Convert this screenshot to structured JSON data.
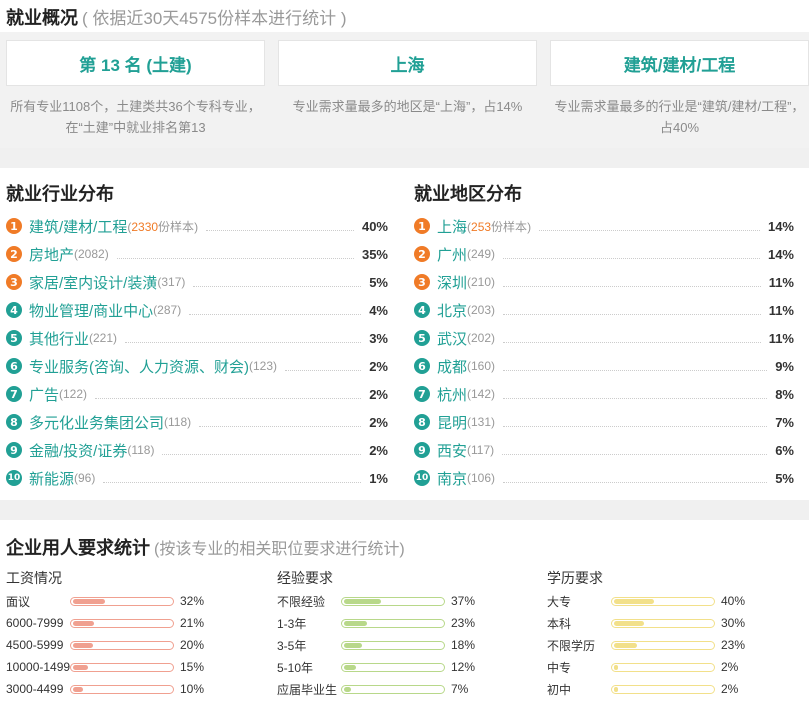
{
  "overview": {
    "title": "就业概况",
    "subtitle": "( 依据近30天4575份样本进行统计 )",
    "cards": [
      {
        "value": "第 13 名 (土建)",
        "desc": "所有专业1108个，土建类共36个专科专业，在“土建”中就业排名第13"
      },
      {
        "value": "上海",
        "desc": "专业需求量最多的地区是“上海”，占14%"
      },
      {
        "value": "建筑/建材/工程",
        "desc": "专业需求量最多的行业是“建筑/建材/工程”，占40%"
      }
    ]
  },
  "industry": {
    "title": "就业行业分布",
    "items": [
      {
        "rank": "1",
        "name": "建筑/建材/工程",
        "count": "2330",
        "count_suffix": "份样本",
        "pct": "40%"
      },
      {
        "rank": "2",
        "name": "房地产",
        "count": "(2082)",
        "pct": "35%"
      },
      {
        "rank": "3",
        "name": "家居/室内设计/装潢",
        "count": "(317)",
        "pct": "5%"
      },
      {
        "rank": "4",
        "name": "物业管理/商业中心",
        "count": "(287)",
        "pct": "4%"
      },
      {
        "rank": "5",
        "name": "其他行业",
        "count": "(221)",
        "pct": "3%"
      },
      {
        "rank": "6",
        "name": "专业服务(咨询、人力资源、财会)",
        "count": "(123)",
        "pct": "2%"
      },
      {
        "rank": "7",
        "name": "广告",
        "count": "(122)",
        "pct": "2%"
      },
      {
        "rank": "8",
        "name": "多元化业务集团公司",
        "count": "(118)",
        "pct": "2%"
      },
      {
        "rank": "9",
        "name": "金融/投资/证券",
        "count": "(118)",
        "pct": "2%"
      },
      {
        "rank": "10",
        "name": "新能源",
        "count": "(96)",
        "pct": "1%"
      }
    ]
  },
  "region": {
    "title": "就业地区分布",
    "items": [
      {
        "rank": "1",
        "name": "上海",
        "count": "253",
        "count_suffix": "份样本",
        "pct": "14%"
      },
      {
        "rank": "2",
        "name": "广州",
        "count": "(249)",
        "pct": "14%"
      },
      {
        "rank": "3",
        "name": "深圳",
        "count": "(210)",
        "pct": "11%"
      },
      {
        "rank": "4",
        "name": "北京",
        "count": "(203)",
        "pct": "11%"
      },
      {
        "rank": "5",
        "name": "武汉",
        "count": "(202)",
        "pct": "11%"
      },
      {
        "rank": "6",
        "name": "成都",
        "count": "(160)",
        "pct": "9%"
      },
      {
        "rank": "7",
        "name": "杭州",
        "count": "(142)",
        "pct": "8%"
      },
      {
        "rank": "8",
        "name": "昆明",
        "count": "(131)",
        "pct": "7%"
      },
      {
        "rank": "9",
        "name": "西安",
        "count": "(117)",
        "pct": "6%"
      },
      {
        "rank": "10",
        "name": "南京",
        "count": "(106)",
        "pct": "5%"
      }
    ]
  },
  "requirements": {
    "title": "企业用人要求统计",
    "subtitle": "(按该专业的相关职位要求进行统计)",
    "salary": {
      "title": "工资情况",
      "items": [
        {
          "label": "面议",
          "pct": "32%",
          "value": 32
        },
        {
          "label": "6000-7999",
          "pct": "21%",
          "value": 21
        },
        {
          "label": "4500-5999",
          "pct": "20%",
          "value": 20
        },
        {
          "label": "10000-14999",
          "pct": "15%",
          "value": 15
        },
        {
          "label": "3000-4499",
          "pct": "10%",
          "value": 10
        }
      ]
    },
    "experience": {
      "title": "经验要求",
      "items": [
        {
          "label": "不限经验",
          "pct": "37%",
          "value": 37
        },
        {
          "label": "1-3年",
          "pct": "23%",
          "value": 23
        },
        {
          "label": "3-5年",
          "pct": "18%",
          "value": 18
        },
        {
          "label": "5-10年",
          "pct": "12%",
          "value": 12
        },
        {
          "label": "应届毕业生",
          "pct": "7%",
          "value": 7
        }
      ]
    },
    "education": {
      "title": "学历要求",
      "items": [
        {
          "label": "大专",
          "pct": "40%",
          "value": 40
        },
        {
          "label": "本科",
          "pct": "30%",
          "value": 30
        },
        {
          "label": "不限学历",
          "pct": "23%",
          "value": 23
        },
        {
          "label": "中专",
          "pct": "2%",
          "value": 2
        },
        {
          "label": "初中",
          "pct": "2%",
          "value": 2
        }
      ]
    }
  }
}
